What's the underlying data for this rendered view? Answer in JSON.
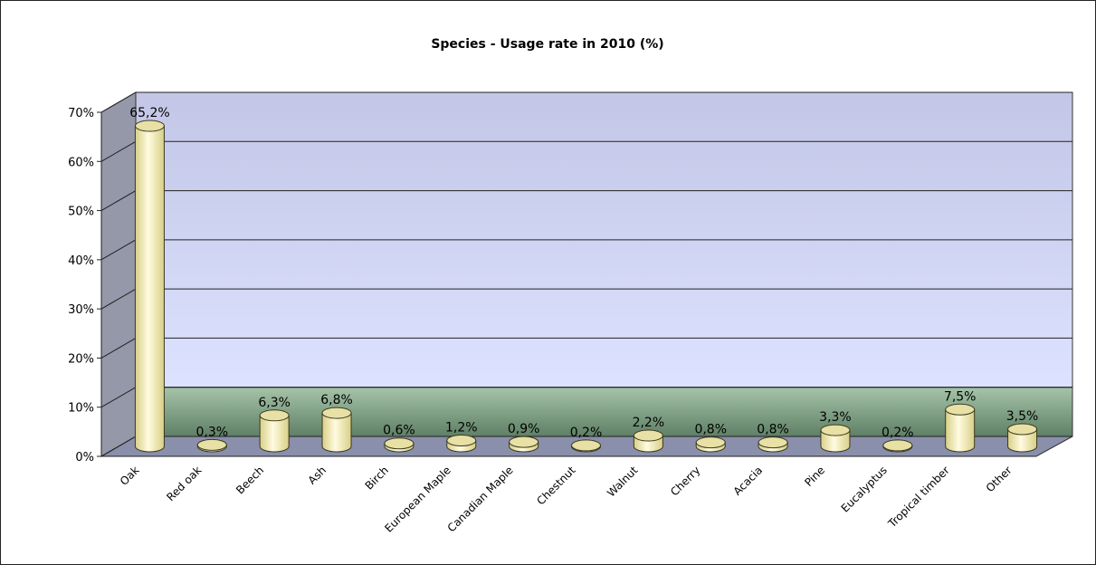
{
  "chart_data": {
    "type": "bar",
    "title": "Species - Usage rate in 2010 (%)",
    "xlabel": "",
    "ylabel": "",
    "categories": [
      "Oak",
      "Red oak",
      "Beech",
      "Ash",
      "Birch",
      "European Maple",
      "Canadian Maple",
      "Chestnut",
      "Walnut",
      "Cherry",
      "Acacia",
      "Pine",
      "Eucalyptus",
      "Tropical timber",
      "Other"
    ],
    "values": [
      65.2,
      0.3,
      6.3,
      6.8,
      0.6,
      1.2,
      0.9,
      0.2,
      2.2,
      0.8,
      0.8,
      3.3,
      0.2,
      7.5,
      3.5
    ],
    "data_labels": [
      "65,2%",
      "0,3%",
      "6,3%",
      "6,8%",
      "0,6%",
      "1,2%",
      "0,9%",
      "0,2%",
      "2,2%",
      "0,8%",
      "0,8%",
      "3,3%",
      "0,2%",
      "7,5%",
      "3,5%"
    ],
    "y_ticks": [
      "0%",
      "10%",
      "20%",
      "30%",
      "40%",
      "50%",
      "60%",
      "70%"
    ],
    "ylim": [
      0,
      70
    ],
    "grid": true,
    "legend": "none",
    "bar_shape": "cylinder",
    "colors": {
      "bar_fill_light": "#fffbe0",
      "bar_fill_dark": "#d8cf86",
      "bar_top": "#e8e0a4",
      "bar_stroke": "#3a3a20",
      "wall_top": "#c3c6e6",
      "wall_bottom": "#dce2ff",
      "wall_green_top": "#a5c4a8",
      "wall_green_bottom": "#5f8066",
      "side_wall": "#9498a8",
      "floor": "#8a8fab"
    }
  }
}
